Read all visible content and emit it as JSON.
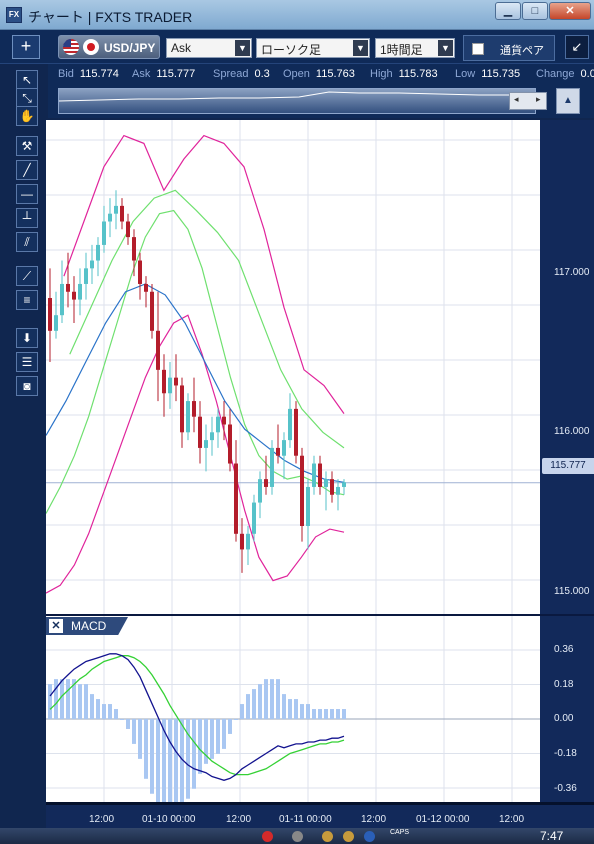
{
  "window": {
    "title": "チャート | FXTS TRADER",
    "app_icon": "FX"
  },
  "toolbar": {
    "plus": "+",
    "pair": "USD/JPY",
    "price_side": "Ask",
    "chart_type": "ローソク足",
    "timeframe": "1時間足",
    "panel_label": "通貨ペア",
    "corner_icon": "↙"
  },
  "quote": {
    "bid_label": "Bid",
    "bid": "115.774",
    "ask_label": "Ask",
    "ask": "115.777",
    "spread_label": "Spread",
    "spread": "0.3",
    "open_label": "Open",
    "open": "115.763",
    "high_label": "High",
    "high": "115.783",
    "low_label": "Low",
    "low": "115.735",
    "change_label": "Change",
    "change": "0.0"
  },
  "price_axis": {
    "ticks": [
      "117.000",
      "116.000",
      "115.000"
    ],
    "current": "115.777"
  },
  "macd": {
    "label": "MACD",
    "close": "✕",
    "ticks": [
      "0.36",
      "0.18",
      "0.00",
      "-0.18",
      "-0.36"
    ]
  },
  "time_axis": {
    "ticks": [
      "12:00",
      "01-10 00:00",
      "12:00",
      "01-11 00:00",
      "12:00",
      "01-12 00:00",
      "12:00"
    ]
  },
  "taskbar": {
    "caps": "CAPS",
    "clock": "7:47"
  },
  "colors": {
    "bollinger_outer": "#e0249b",
    "bollinger_inner": "#6fe06f",
    "middle_band": "#2a73c9",
    "bull": "#56c2c9",
    "bear": "#b31d2b",
    "macd_line": "#13138f",
    "signal_line": "#35d135",
    "histogram": "#a9c7f2"
  },
  "chart_data": {
    "type": "candlestick",
    "price_range": [
      114.93,
      118.1
    ],
    "candles": [
      [
        116.96,
        117.15,
        116.55,
        116.75
      ],
      [
        116.75,
        117.0,
        116.7,
        116.85
      ],
      [
        116.85,
        117.2,
        116.8,
        117.05
      ],
      [
        117.05,
        117.25,
        116.9,
        117.0
      ],
      [
        117.0,
        117.1,
        116.8,
        116.95
      ],
      [
        116.95,
        117.15,
        116.85,
        117.05
      ],
      [
        117.05,
        117.25,
        116.95,
        117.15
      ],
      [
        117.15,
        117.3,
        117.05,
        117.2
      ],
      [
        117.2,
        117.35,
        117.1,
        117.3
      ],
      [
        117.3,
        117.55,
        117.25,
        117.45
      ],
      [
        117.45,
        117.6,
        117.35,
        117.5
      ],
      [
        117.5,
        117.65,
        117.4,
        117.55
      ],
      [
        117.55,
        117.6,
        117.4,
        117.45
      ],
      [
        117.45,
        117.5,
        117.3,
        117.35
      ],
      [
        117.35,
        117.4,
        117.1,
        117.2
      ],
      [
        117.2,
        117.25,
        116.95,
        117.05
      ],
      [
        117.05,
        117.1,
        116.9,
        117.0
      ],
      [
        117.0,
        117.05,
        116.7,
        116.75
      ],
      [
        116.75,
        117.0,
        116.3,
        116.5
      ],
      [
        116.5,
        116.6,
        116.2,
        116.35
      ],
      [
        116.35,
        116.55,
        116.25,
        116.45
      ],
      [
        116.45,
        116.6,
        116.3,
        116.4
      ],
      [
        116.4,
        116.45,
        116.0,
        116.1
      ],
      [
        116.1,
        116.35,
        116.05,
        116.3
      ],
      [
        116.3,
        116.45,
        116.1,
        116.2
      ],
      [
        116.2,
        116.3,
        115.9,
        116.0
      ],
      [
        116.0,
        116.15,
        115.85,
        116.05
      ],
      [
        116.05,
        116.2,
        115.95,
        116.1
      ],
      [
        116.1,
        116.25,
        116.0,
        116.2
      ],
      [
        116.2,
        116.3,
        116.05,
        116.15
      ],
      [
        116.15,
        116.25,
        115.85,
        115.9
      ],
      [
        115.9,
        116.05,
        115.4,
        115.45
      ],
      [
        115.45,
        115.55,
        115.2,
        115.35
      ],
      [
        115.35,
        115.5,
        115.25,
        115.45
      ],
      [
        115.45,
        115.7,
        115.4,
        115.65
      ],
      [
        115.65,
        115.85,
        115.55,
        115.8
      ],
      [
        115.8,
        115.95,
        115.7,
        115.75
      ],
      [
        115.75,
        116.05,
        115.7,
        116.0
      ],
      [
        116.0,
        116.15,
        115.9,
        115.95
      ],
      [
        115.95,
        116.1,
        115.8,
        116.05
      ],
      [
        116.05,
        116.35,
        116.0,
        116.25
      ],
      [
        116.25,
        116.3,
        115.9,
        115.95
      ],
      [
        115.95,
        116.0,
        115.4,
        115.5
      ],
      [
        115.5,
        115.8,
        115.35,
        115.75
      ],
      [
        115.75,
        115.95,
        115.7,
        115.9
      ],
      [
        115.9,
        115.95,
        115.7,
        115.75
      ],
      [
        115.75,
        115.85,
        115.6,
        115.8
      ],
      [
        115.8,
        115.85,
        115.65,
        115.7
      ],
      [
        115.7,
        115.8,
        115.6,
        115.75
      ],
      [
        115.75,
        115.8,
        115.7,
        115.78
      ]
    ],
    "upper_outer": [
      115.07,
      115.12,
      115.25,
      115.45,
      115.7,
      115.95,
      116.2,
      116.45,
      116.65,
      116.8,
      116.85,
      116.6,
      116.3,
      115.95,
      115.6,
      115.3,
      115.15,
      115.18,
      115.3,
      115.43,
      115.48,
      115.46
    ],
    "upper_inner": [
      115.58,
      115.75,
      115.95,
      116.2,
      116.5,
      116.8,
      117.1,
      117.35,
      117.5,
      117.52,
      117.4,
      117.15,
      116.8,
      116.45,
      116.15,
      115.95,
      115.85,
      115.8,
      115.82,
      115.78,
      115.72,
      115.7
    ],
    "middle": [
      116.08,
      116.3,
      116.55,
      116.8,
      117.0,
      117.05,
      116.98,
      116.8,
      116.55,
      116.3,
      116.12,
      116.02,
      115.92,
      115.85,
      115.8,
      115.78
    ],
    "lower_inner": [
      116.6,
      116.9,
      117.2,
      117.45,
      117.6,
      117.65,
      117.52,
      117.38,
      117.2,
      116.85,
      116.5,
      116.25,
      116.1,
      116.0
    ],
    "lower_outer": [
      117.1,
      117.45,
      117.8,
      118.0,
      117.95,
      117.65,
      117.85,
      118.0,
      117.95,
      117.8,
      117.4,
      116.9,
      116.5,
      116.4,
      116.22
    ]
  }
}
